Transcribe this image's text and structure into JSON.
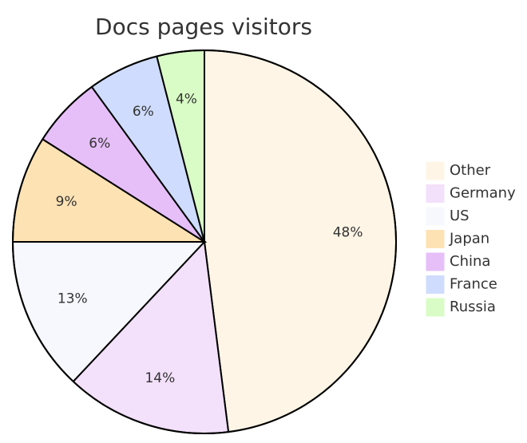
{
  "chart_data": {
    "type": "pie",
    "title": "Docs pages visitors",
    "categories": [
      "Other",
      "Germany",
      "US",
      "Japan",
      "China",
      "France",
      "Russia"
    ],
    "values": [
      48,
      14,
      13,
      9,
      6,
      6,
      4
    ],
    "value_labels": [
      "48%",
      "14%",
      "13%",
      "9%",
      "6%",
      "6%",
      "4%"
    ],
    "colors": [
      "#fff5e6",
      "#f3e0fb",
      "#f7f8fe",
      "#fde2b4",
      "#e6bff9",
      "#cfdcfd",
      "#d9fcc6"
    ]
  }
}
